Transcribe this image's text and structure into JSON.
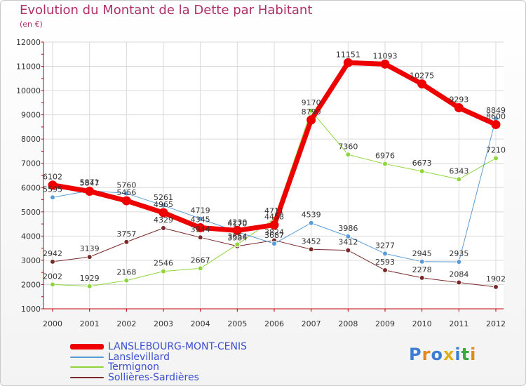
{
  "header": {
    "title": "Evolution du Montant de la Dette par Habitant",
    "subtitle": "(en €)"
  },
  "logo": {
    "letters": [
      "P",
      "r",
      "o",
      "x",
      "i",
      "t",
      "i"
    ],
    "colors": [
      "#3a7fd5",
      "#e08a1a",
      "#3a7fd5",
      "#e0b01a",
      "#3a7fd5",
      "#3aa83a",
      "#e08a1a"
    ]
  },
  "chart_data": {
    "type": "line",
    "title": "Evolution du Montant de la Dette par Habitant",
    "subtitle": "(en €)",
    "x": [
      "2000",
      "2001",
      "2002",
      "2003",
      "2004",
      "2005",
      "2006",
      "2007",
      "2008",
      "2009",
      "2010",
      "2011",
      "2012"
    ],
    "ylim": [
      1000,
      12000
    ],
    "yticks": [
      1000,
      2000,
      3000,
      4000,
      5000,
      6000,
      7000,
      8000,
      9000,
      10000,
      11000,
      12000
    ],
    "grid": true,
    "legend_position": "bottom-left",
    "series": [
      {
        "name": "LANSLEBOURG-MONT-CENIS",
        "color": "#ee0000",
        "width": 7,
        "values": [
          6102,
          5847,
          5456,
          4965,
          4345,
          4230,
          4458,
          8790,
          11151,
          11093,
          10275,
          9293,
          8600
        ]
      },
      {
        "name": "Lanslevillard",
        "color": "#5b9bd5",
        "width": 1,
        "values": [
          5595,
          5871,
          5760,
          5261,
          4719,
          4170,
          3687,
          4539,
          3986,
          3277,
          2945,
          2935,
          8849
        ]
      },
      {
        "name": "Termignon",
        "color": "#8fd63a",
        "width": 1,
        "values": [
          2002,
          1929,
          2168,
          2546,
          2667,
          3654,
          4711,
          9170,
          7360,
          6976,
          6673,
          6343,
          7210
        ]
      },
      {
        "name": "Sollières-Sardières",
        "color": "#7a2a2a",
        "width": 1,
        "values": [
          2942,
          3139,
          3757,
          4329,
          3944,
          3584,
          3824,
          3452,
          3412,
          2593,
          2278,
          2084,
          1902
        ]
      }
    ]
  }
}
